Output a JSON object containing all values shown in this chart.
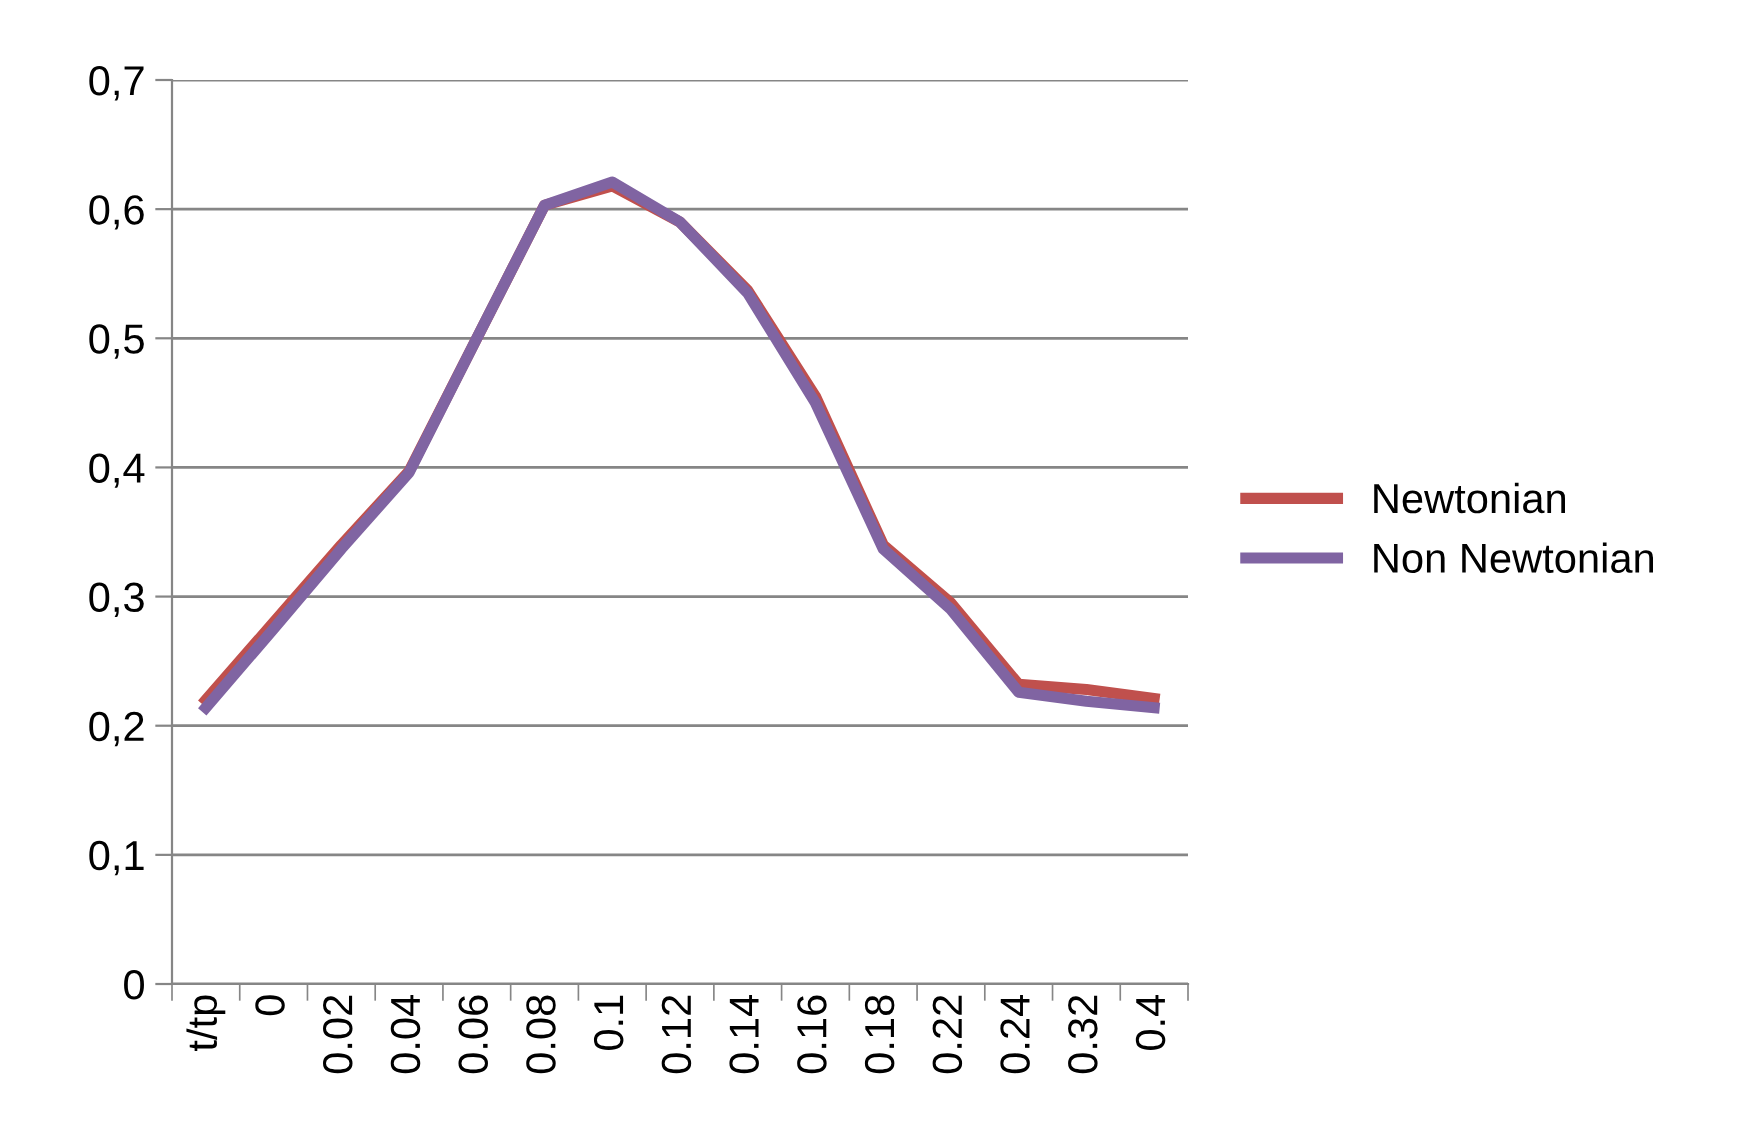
{
  "chart_data": {
    "type": "line",
    "categories": [
      "t/tp",
      "0",
      "0.02",
      "0.04",
      "0.06",
      "0.08",
      "0.1",
      "0.12",
      "0.14",
      "0.16",
      "0.18",
      "0.22",
      "0.24",
      "0.32",
      "0.4"
    ],
    "series": [
      {
        "name": "Newtonian",
        "color": "#c0504d",
        "values": [
          0.22,
          0.28,
          0.34,
          0.397,
          0.5,
          0.603,
          0.618,
          0.59,
          0.537,
          0.455,
          0.34,
          0.295,
          0.232,
          0.228,
          0.221
        ]
      },
      {
        "name": "Non Newtonian",
        "color": "#8064a2",
        "values": [
          0.214,
          0.275,
          0.337,
          0.396,
          0.5,
          0.603,
          0.621,
          0.59,
          0.535,
          0.45,
          0.337,
          0.29,
          0.226,
          0.219,
          0.214
        ]
      }
    ],
    "ylim": [
      0,
      0.7
    ],
    "yticks": [
      {
        "value": 0,
        "label": "0"
      },
      {
        "value": 0.1,
        "label": "0,1"
      },
      {
        "value": 0.2,
        "label": "0,2"
      },
      {
        "value": 0.3,
        "label": "0,3"
      },
      {
        "value": 0.4,
        "label": "0,4"
      },
      {
        "value": 0.5,
        "label": "0,5"
      },
      {
        "value": 0.6,
        "label": "0,6"
      },
      {
        "value": 0.7,
        "label": "0,7"
      }
    ],
    "grid": "y",
    "legend": "right",
    "marker": "none",
    "line_style": "solid"
  }
}
